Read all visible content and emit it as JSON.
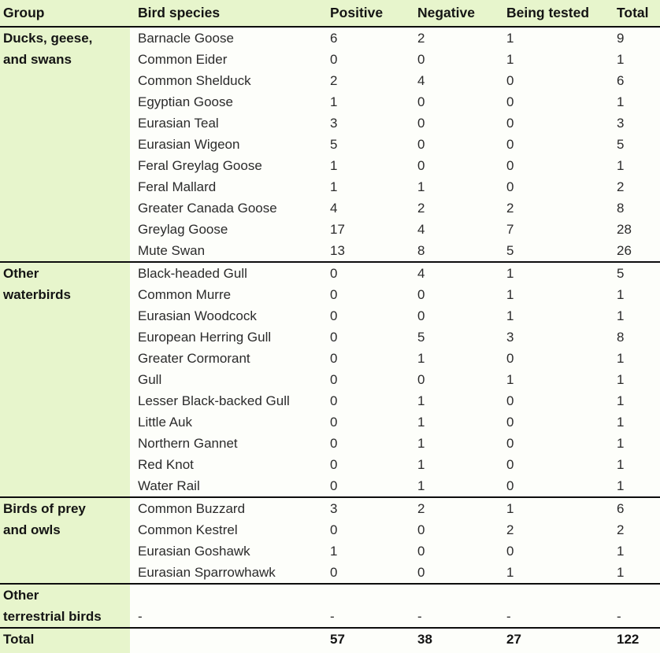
{
  "colors": {
    "header_bg": "#e7f5cc",
    "group_column_bg": "#e7f5cc",
    "divider_line": "#0d0d0d",
    "table_bg": "#fdfefa",
    "text": "#2b2b2b"
  },
  "chart_data": {
    "type": "table",
    "columns": [
      "Group",
      "Bird species",
      "Positive",
      "Negative",
      "Being tested",
      "Total"
    ],
    "groups": [
      {
        "group": "Ducks, geese, and swans",
        "group_lines": [
          "Ducks, geese,",
          "and swans"
        ],
        "rows": [
          [
            "Barnacle Goose",
            "6",
            "2",
            "1",
            "9"
          ],
          [
            "Common Eider",
            "0",
            "0",
            "1",
            "1"
          ],
          [
            "Common Shelduck",
            "2",
            "4",
            "0",
            "6"
          ],
          [
            "Egyptian Goose",
            "1",
            "0",
            "0",
            "1"
          ],
          [
            "Eurasian Teal",
            "3",
            "0",
            "0",
            "3"
          ],
          [
            "Eurasian Wigeon",
            "5",
            "0",
            "0",
            "5"
          ],
          [
            "Feral Greylag Goose",
            "1",
            "0",
            "0",
            "1"
          ],
          [
            "Feral Mallard",
            "1",
            "1",
            "0",
            "2"
          ],
          [
            "Greater Canada Goose",
            "4",
            "2",
            "2",
            "8"
          ],
          [
            "Greylag Goose",
            "17",
            "4",
            "7",
            "28"
          ],
          [
            "Mute Swan",
            "13",
            "8",
            "5",
            "26"
          ]
        ]
      },
      {
        "group": "Other waterbirds",
        "group_lines": [
          "Other",
          "waterbirds"
        ],
        "rows": [
          [
            "Black-headed Gull",
            "0",
            "4",
            "1",
            "5"
          ],
          [
            "Common Murre",
            "0",
            "0",
            "1",
            "1"
          ],
          [
            "Eurasian Woodcock",
            "0",
            "0",
            "1",
            "1"
          ],
          [
            "European Herring Gull",
            "0",
            "5",
            "3",
            "8"
          ],
          [
            "Greater Cormorant",
            "0",
            "1",
            "0",
            "1"
          ],
          [
            "Gull",
            "0",
            "0",
            "1",
            "1"
          ],
          [
            "Lesser Black-backed Gull",
            "0",
            "1",
            "0",
            "1"
          ],
          [
            "Little Auk",
            "0",
            "1",
            "0",
            "1"
          ],
          [
            "Northern Gannet",
            "0",
            "1",
            "0",
            "1"
          ],
          [
            "Red Knot",
            "0",
            "1",
            "0",
            "1"
          ],
          [
            "Water Rail",
            "0",
            "1",
            "0",
            "1"
          ]
        ]
      },
      {
        "group": "Birds of prey and owls",
        "group_lines": [
          "Birds of prey",
          "and owls"
        ],
        "rows": [
          [
            "Common Buzzard",
            "3",
            "2",
            "1",
            "6"
          ],
          [
            "Common Kestrel",
            "0",
            "0",
            "2",
            "2"
          ],
          [
            "Eurasian Goshawk",
            "1",
            "0",
            "0",
            "1"
          ],
          [
            "Eurasian Sparrowhawk",
            "0",
            "0",
            "1",
            "1"
          ]
        ]
      },
      {
        "group": "Other terrestrial birds",
        "group_lines": [
          "Other",
          "terrestrial birds"
        ],
        "rows": [
          [
            "-",
            "-",
            "-",
            "-",
            "-"
          ]
        ]
      }
    ],
    "total_row": [
      "Total",
      "",
      "57",
      "38",
      "27",
      "122"
    ]
  }
}
